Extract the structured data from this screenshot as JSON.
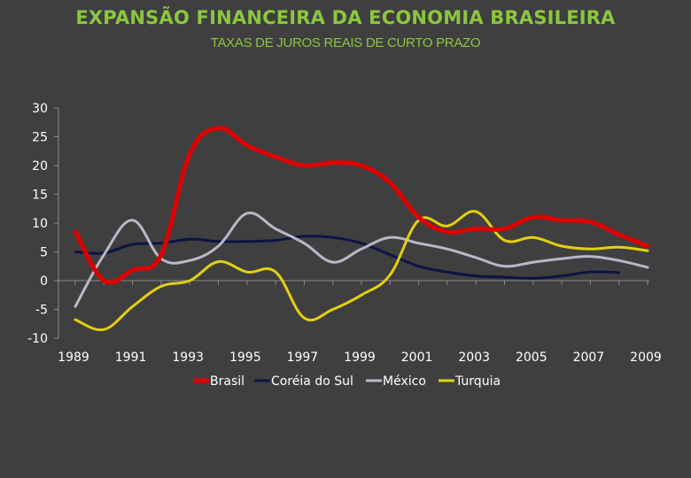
{
  "title": "EXPANSÃO FINANCEIRA DA ECONOMIA BRASILEIRA",
  "subtitle": "TAXAS DE JUROS REAIS DE CURTO PRAZO",
  "chart_data": {
    "type": "line",
    "title": "EXPANSÃO FINANCEIRA DA ECONOMIA BRASILEIRA",
    "subtitle": "TAXAS DE JUROS REAIS DE CURTO PRAZO",
    "xlabel": "",
    "ylabel": "",
    "x": [
      1989,
      1990,
      1991,
      1992,
      1993,
      1994,
      1995,
      1996,
      1997,
      1998,
      1999,
      2000,
      2001,
      2002,
      2003,
      2004,
      2005,
      2006,
      2007,
      2008,
      2009
    ],
    "xticks": [
      "1989",
      "1991",
      "1993",
      "1995",
      "1997",
      "1999",
      "2001",
      "2003",
      "2005",
      "2007",
      "2009"
    ],
    "yticks": [
      "30",
      "25",
      "20",
      "15",
      "10",
      "5",
      "0",
      "-5",
      "-10"
    ],
    "ylim": [
      -10,
      30
    ],
    "xlim": [
      1989,
      2009
    ],
    "grid": false,
    "legend_position": "bottom",
    "series": [
      {
        "name": "Brasil",
        "color": "#e00000",
        "values": [
          8.5,
          0.0,
          1.8,
          4.5,
          22.0,
          26.5,
          23.5,
          21.5,
          20.0,
          20.5,
          20.0,
          17.0,
          11.0,
          8.5,
          9.0,
          9.0,
          11.0,
          10.5,
          10.2,
          8.0,
          6.0
        ]
      },
      {
        "name": "Coréia do Sul",
        "color": "#0d1445",
        "values": [
          5.0,
          4.8,
          6.3,
          6.5,
          7.2,
          6.8,
          6.8,
          7.0,
          7.7,
          7.5,
          6.5,
          4.5,
          2.5,
          1.5,
          0.8,
          0.6,
          0.4,
          0.8,
          1.5,
          1.4,
          null
        ]
      },
      {
        "name": "México",
        "color": "#b8b8c8",
        "values": [
          -4.5,
          4.5,
          10.5,
          3.8,
          3.5,
          6.0,
          11.7,
          9.0,
          6.5,
          3.2,
          5.5,
          7.5,
          6.5,
          5.5,
          4.0,
          2.5,
          3.2,
          3.8,
          4.2,
          3.5,
          2.3
        ]
      },
      {
        "name": "Turquia",
        "color": "#e3d00f",
        "values": [
          -6.8,
          -8.5,
          -4.5,
          -1.0,
          0.0,
          3.3,
          1.5,
          1.5,
          -6.5,
          -5.0,
          -2.5,
          1.0,
          10.5,
          9.5,
          12.0,
          7.0,
          7.5,
          6.0,
          5.5,
          5.8,
          5.2
        ]
      }
    ]
  }
}
